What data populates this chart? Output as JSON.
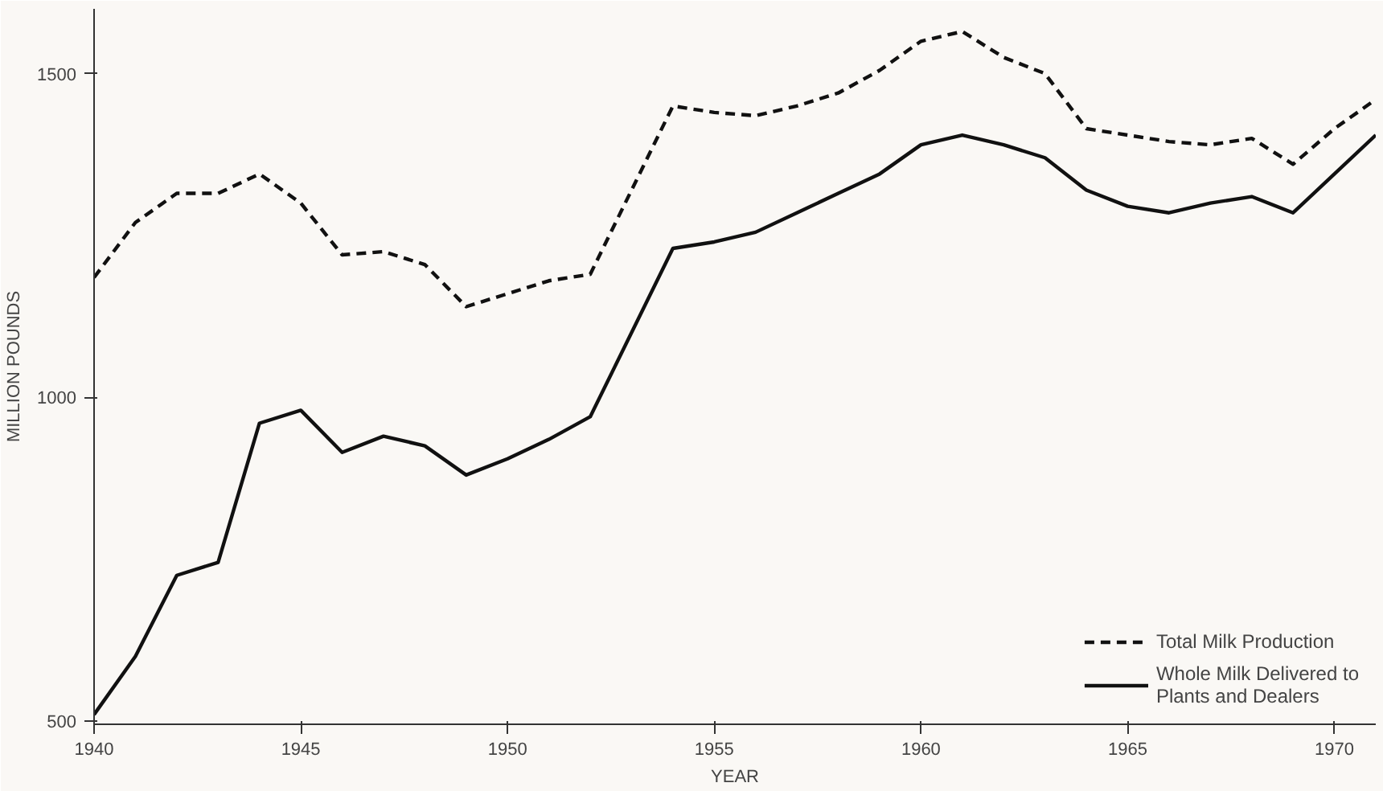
{
  "chart_data": {
    "type": "line",
    "xlabel": "YEAR",
    "ylabel": "MILLION POUNDS",
    "x": [
      1940,
      1941,
      1942,
      1943,
      1944,
      1945,
      1946,
      1947,
      1948,
      1949,
      1950,
      1951,
      1952,
      1953,
      1954,
      1955,
      1956,
      1957,
      1958,
      1959,
      1960,
      1961,
      1962,
      1963,
      1964,
      1965,
      1966,
      1967,
      1968,
      1969,
      1970,
      1971
    ],
    "series": [
      {
        "name": "Total Milk Production",
        "color": "#111111",
        "line_style": "dashed",
        "values": [
          1185,
          1270,
          1315,
          1315,
          1345,
          1300,
          1220,
          1225,
          1205,
          1140,
          1160,
          1180,
          1190,
          1320,
          1450,
          1440,
          1435,
          1450,
          1470,
          1505,
          1550,
          1565,
          1525,
          1500,
          1415,
          1405,
          1395,
          1390,
          1400,
          1360,
          1415,
          1460
        ]
      },
      {
        "name": "Whole Milk Delivered to Plants and Dealers",
        "color": "#111111",
        "line_style": "solid",
        "values": [
          510,
          600,
          725,
          745,
          960,
          980,
          915,
          940,
          925,
          880,
          905,
          935,
          970,
          1100,
          1230,
          1240,
          1255,
          1285,
          1315,
          1345,
          1390,
          1405,
          1390,
          1370,
          1320,
          1295,
          1285,
          1300,
          1310,
          1285,
          1345,
          1405
        ]
      }
    ],
    "xlim": [
      1940,
      1971
    ],
    "ylim": [
      495,
      1600
    ],
    "xticks": [
      1940,
      1945,
      1950,
      1955,
      1960,
      1965,
      1970
    ],
    "yticks": [
      500,
      1000,
      1500
    ],
    "grid": false,
    "legend": "bottom right",
    "marker": "none"
  }
}
